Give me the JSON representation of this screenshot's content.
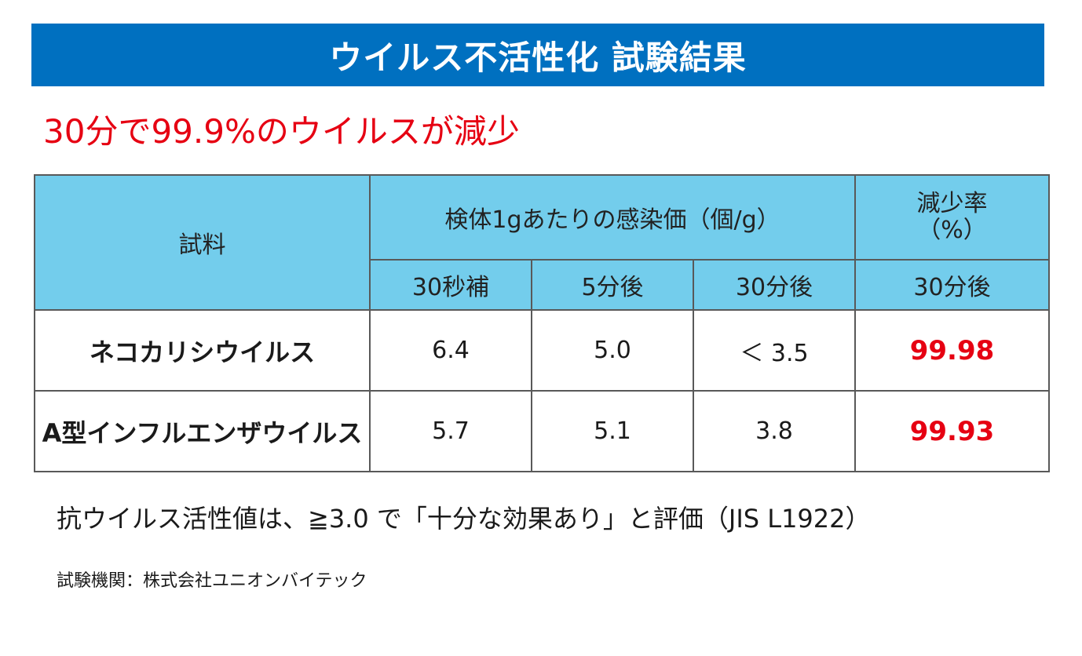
{
  "title": "ウイルス不活性化 試験結果",
  "headline": "30分で99.9%のウイルスが減少",
  "table": {
    "header_sample": "試料",
    "header_infectivity": "検体1gあたりの感染価（個/g）",
    "header_rate_line1": "減少率",
    "header_rate_line2": "（%）",
    "subheaders": [
      "30秒補",
      "5分後",
      "30分後",
      "30分後"
    ],
    "rows": [
      {
        "name": "ネコカリシウイルス",
        "v30s": "6.4",
        "v5m": "5.0",
        "v30m": "＜ 3.5",
        "rate": "99.98"
      },
      {
        "name": "A型インフルエンザウイルス",
        "v30s": "5.7",
        "v5m": "5.1",
        "v30m": "3.8",
        "rate": "99.93"
      }
    ]
  },
  "note": "抗ウイルス活性値は、≧3.0 で「十分な効果あり」と評価（JIS L1922）",
  "source": "試験機関：株式会社ユニオンバイテック",
  "colors": {
    "banner": "#0070c0",
    "header_fill": "#73cdec",
    "accent_red": "#e60012",
    "border": "#595959"
  }
}
